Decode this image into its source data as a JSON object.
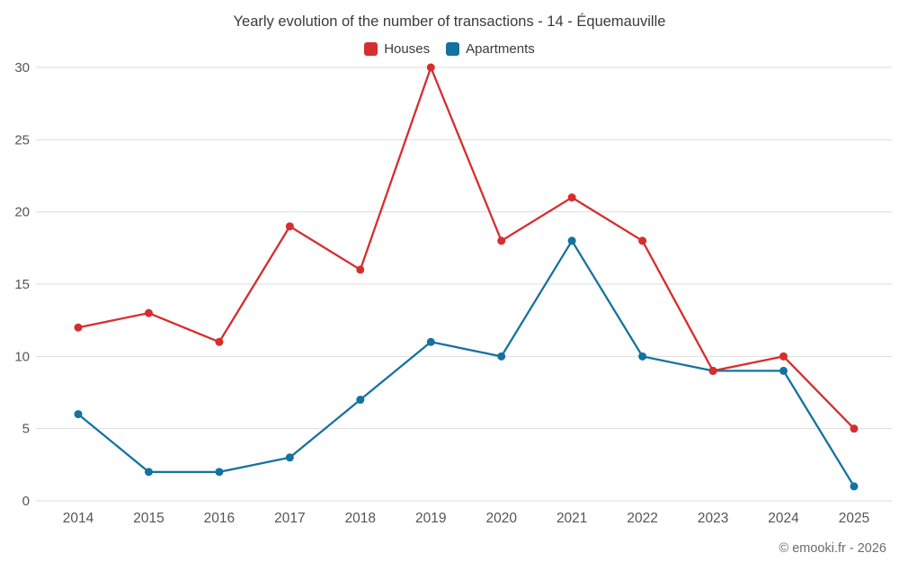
{
  "title": "Yearly evolution of the number of transactions - 14 - Équemauville",
  "footer": "© emooki.fr - 2026",
  "colors": {
    "houses": "#d62e2e",
    "apartments": "#15729f",
    "grid": "#dddddd",
    "text": "#555555"
  },
  "legend": {
    "houses_label": "Houses",
    "apartments_label": "Apartments"
  },
  "chart_data": {
    "type": "line",
    "title": "Yearly evolution of the number of transactions - 14 - Équemauville",
    "x": [
      2014,
      2015,
      2016,
      2017,
      2018,
      2019,
      2020,
      2021,
      2022,
      2023,
      2024,
      2025
    ],
    "series": [
      {
        "name": "Houses",
        "color": "#d62e2e",
        "values": [
          12,
          13,
          11,
          19,
          16,
          30,
          18,
          21,
          18,
          9,
          10,
          5
        ]
      },
      {
        "name": "Apartments",
        "color": "#15729f",
        "values": [
          6,
          2,
          2,
          3,
          7,
          11,
          10,
          18,
          10,
          9,
          9,
          1
        ]
      }
    ],
    "ylim": [
      0,
      30
    ],
    "yticks": [
      0,
      5,
      10,
      15,
      20,
      25,
      30
    ],
    "grid": "horizontal",
    "legend_position": "top",
    "xlabel": "",
    "ylabel": ""
  }
}
